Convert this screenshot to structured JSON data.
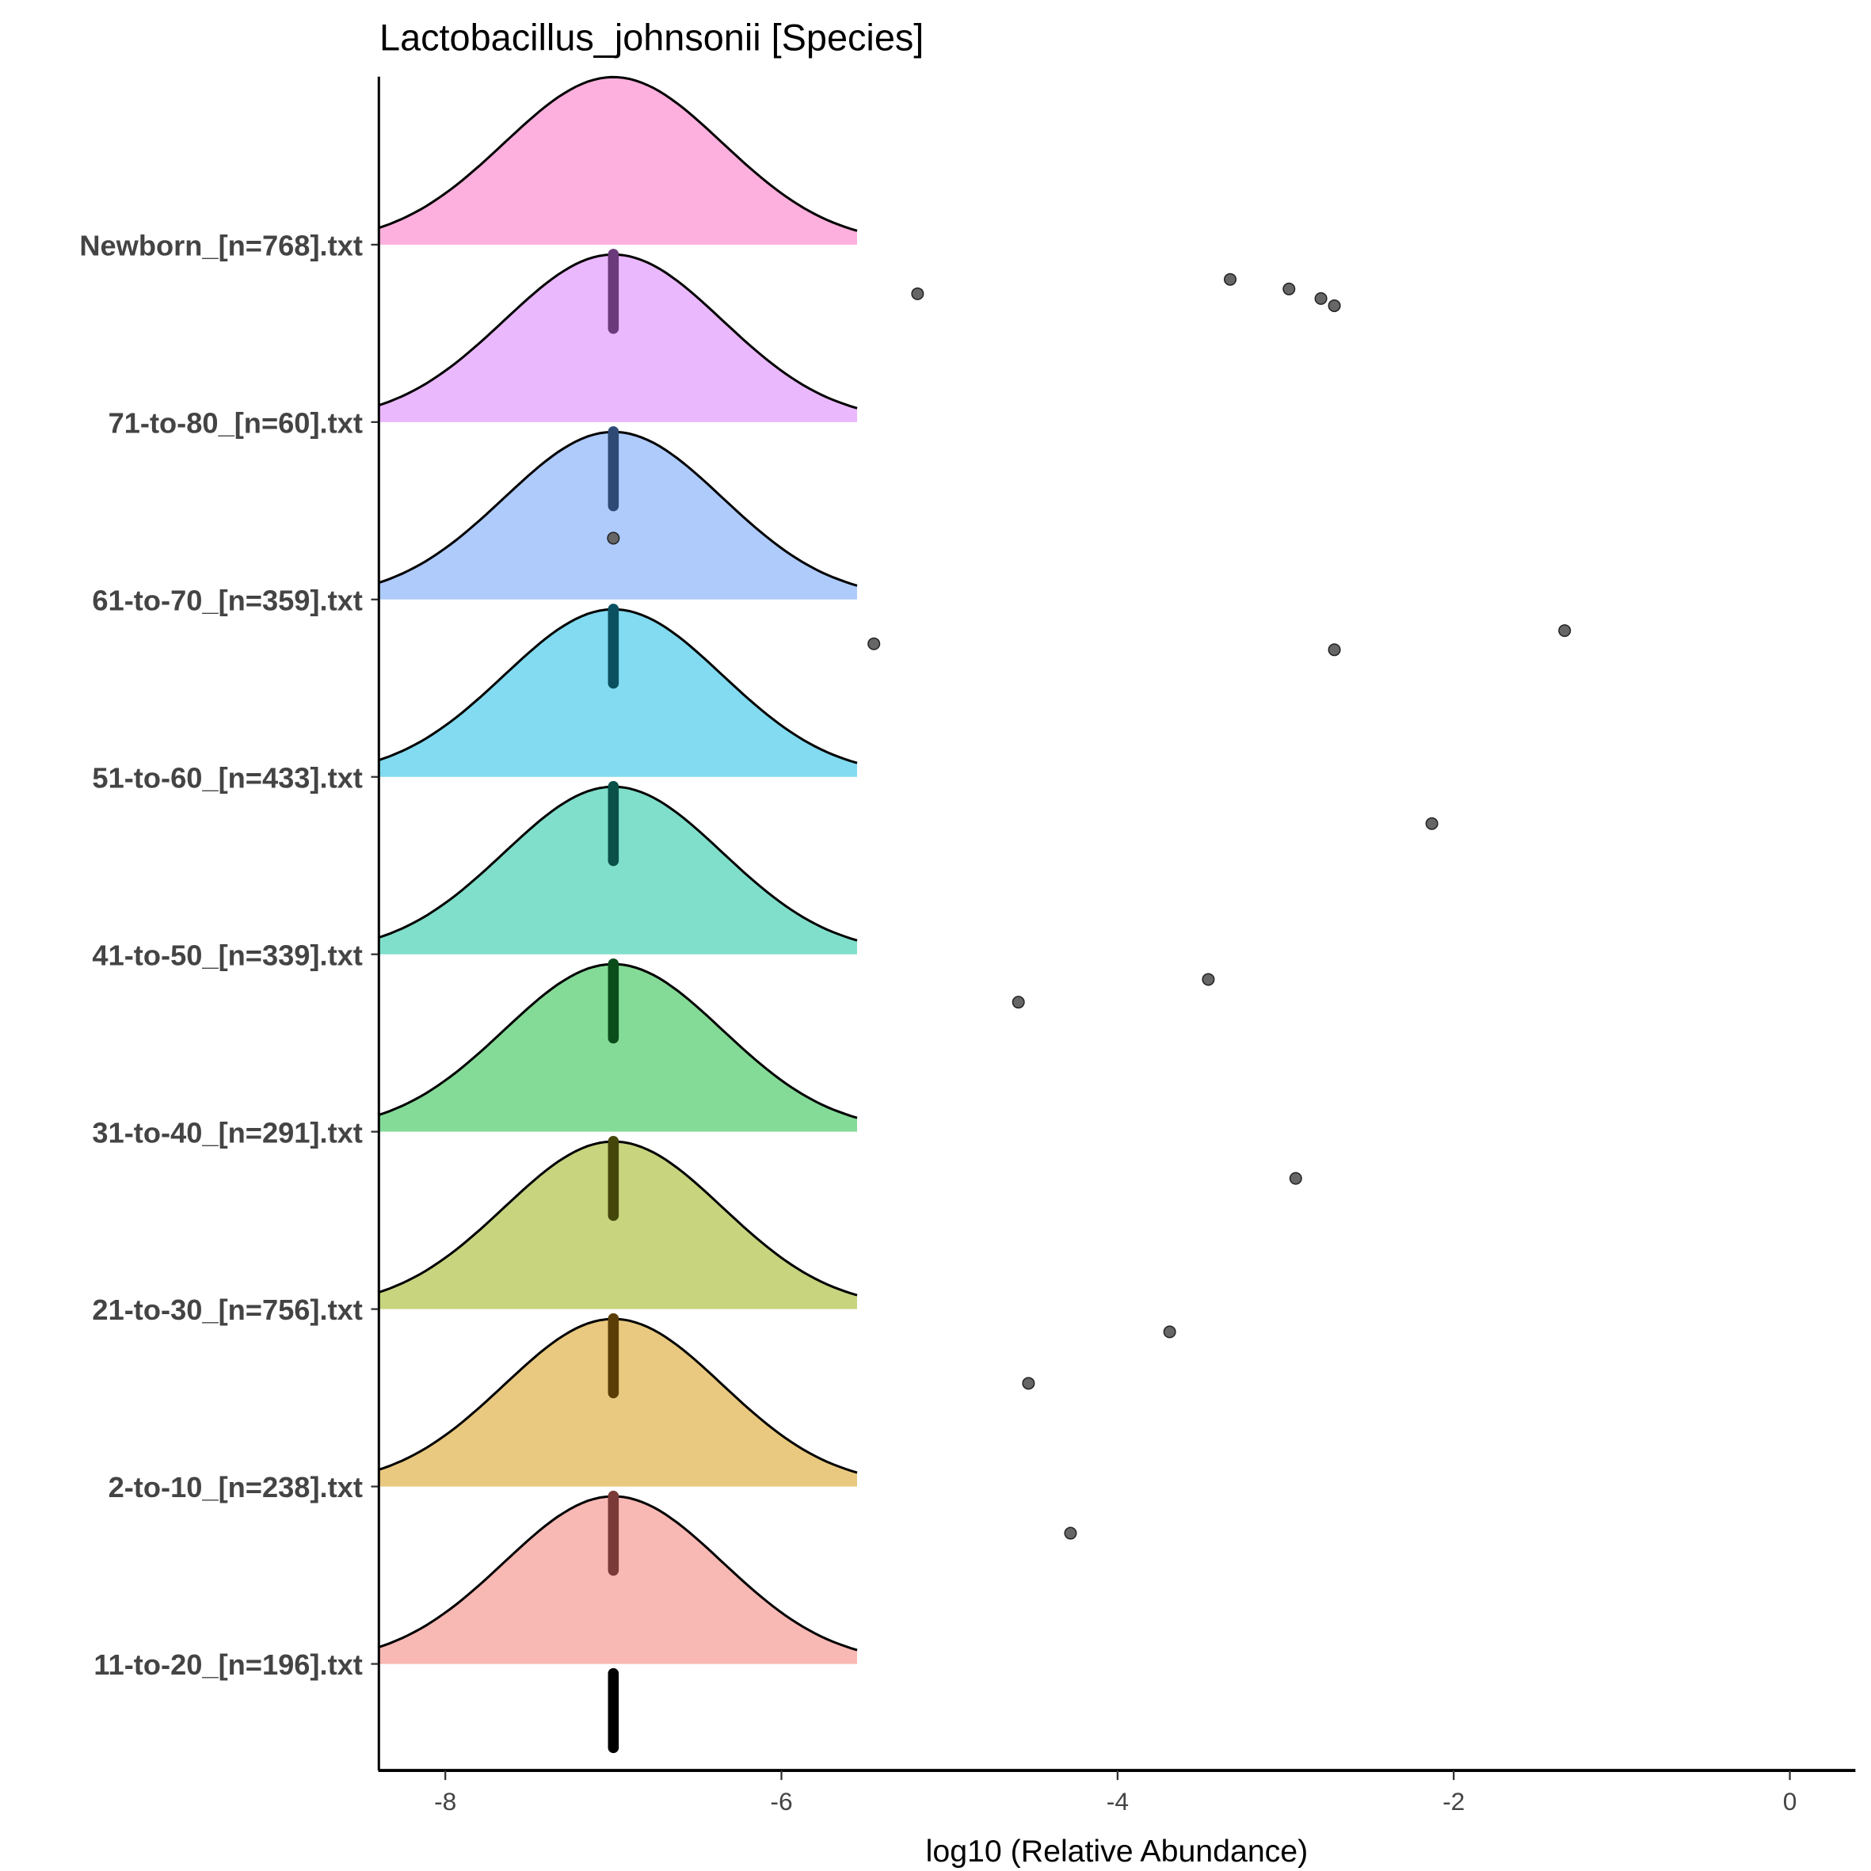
{
  "chart_data": {
    "type": "ridgeline",
    "title": "Lactobacillus_johnsonii [Species]",
    "xlabel": "log10 (Relative Abundance)",
    "ylabel": "",
    "xlim": [
      -8.4,
      0.39
    ],
    "xticks": [
      -8,
      -6,
      -4,
      -2,
      0
    ],
    "xtick_labels": [
      "-8",
      "-6",
      "-4",
      "-2",
      "0"
    ],
    "density": {
      "mean": -7,
      "sd": 0.65,
      "range": [
        -8.4,
        -5.55
      ]
    },
    "groups": [
      {
        "label": "11-to-20_[n=196].txt",
        "fill": "#F8B8B3",
        "box": "#7A3A38",
        "median": -7,
        "outliers": [
          -4.28
        ]
      },
      {
        "label": "2-to-10_[n=238].txt",
        "fill": "#E8C97F",
        "box": "#5A3E06",
        "median": -7,
        "outliers": [
          -3.69,
          -4.53
        ]
      },
      {
        "label": "21-to-30_[n=756].txt",
        "fill": "#C8D47E",
        "box": "#44460A",
        "median": -7,
        "outliers": [
          -2.94
        ]
      },
      {
        "label": "31-to-40_[n=291].txt",
        "fill": "#84DB97",
        "box": "#0B4D1A",
        "median": -7,
        "outliers": [
          -3.46,
          -4.59
        ]
      },
      {
        "label": "41-to-50_[n=339].txt",
        "fill": "#80DFCB",
        "box": "#0A5048",
        "median": -7,
        "outliers": [
          -2.13
        ]
      },
      {
        "label": "51-to-60_[n=433].txt",
        "fill": "#82DBF0",
        "box": "#0A5060",
        "median": -7,
        "outliers": [
          -1.34,
          -2.71,
          -5.45
        ]
      },
      {
        "label": "61-to-70_[n=359].txt",
        "fill": "#AECBFC",
        "box": "#2E4A75",
        "median": -7,
        "outliers": [
          -7
        ]
      },
      {
        "label": "71-to-80_[n=60].txt",
        "fill": "#EAB8FD",
        "box": "#6B3A7A",
        "median": -7,
        "outliers": [
          -5.19,
          -2.79,
          -3.33,
          -2.98,
          -2.71
        ]
      },
      {
        "label": "Newborn_[n=768].txt",
        "fill": "#FDB0DD",
        "box": "#000000",
        "median": -7,
        "outliers": []
      }
    ]
  }
}
